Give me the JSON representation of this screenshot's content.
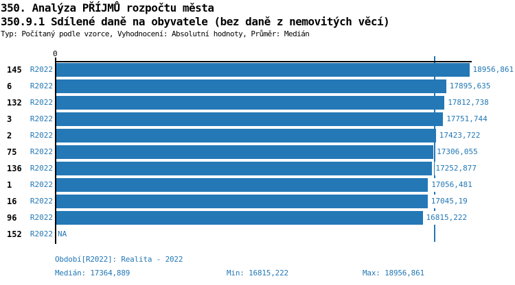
{
  "header": {
    "title_line1": "350. Analýza PŘÍJMŮ rozpočtu města",
    "title_line2": "350.9.1 Sdílené daně na obyvatele (bez daně z nemovitých věcí)",
    "meta_line": "Typ: Počítaný podle vzorce, Vyhodnocení: Absolutní hodnoty, Průměr: Medián"
  },
  "chart_data": {
    "type": "bar",
    "orientation": "horizontal",
    "title": "350.9.1 Sdílené daně na obyvatele (bez daně z nemovitých věcí)",
    "axis_origin_label": "0",
    "xlim": [
      0,
      19100
    ],
    "grid": false,
    "bar_color": "#2478b6",
    "median_value": 17364.889,
    "min_value": 16815.222,
    "max_value": 18956.861,
    "categories": [
      "145",
      "6",
      "132",
      "3",
      "2",
      "75",
      "136",
      "1",
      "16",
      "96",
      "152"
    ],
    "period": "R2022",
    "rows": [
      {
        "id": "145",
        "period": "R2022",
        "value": 18956.861,
        "label": "18956,861"
      },
      {
        "id": "6",
        "period": "R2022",
        "value": 17895.635,
        "label": "17895,635"
      },
      {
        "id": "132",
        "period": "R2022",
        "value": 17812.738,
        "label": "17812,738"
      },
      {
        "id": "3",
        "period": "R2022",
        "value": 17751.744,
        "label": "17751,744"
      },
      {
        "id": "2",
        "period": "R2022",
        "value": 17423.722,
        "label": "17423,722"
      },
      {
        "id": "75",
        "period": "R2022",
        "value": 17306.055,
        "label": "17306,055"
      },
      {
        "id": "136",
        "period": "R2022",
        "value": 17252.877,
        "label": "17252,877"
      },
      {
        "id": "1",
        "period": "R2022",
        "value": 17056.481,
        "label": "17056,481"
      },
      {
        "id": "16",
        "period": "R2022",
        "value": 17045.19,
        "label": "17045,19"
      },
      {
        "id": "96",
        "period": "R2022",
        "value": 16815.222,
        "label": "16815,222"
      },
      {
        "id": "152",
        "period": "R2022",
        "value": null,
        "label": "NA"
      }
    ]
  },
  "footer": {
    "period_legend": "Období[R2022]: Realita - 2022",
    "median_label": "Medián: 17364,889",
    "min_label": "Min: 16815,222",
    "max_label": "Max: 18956,861"
  }
}
